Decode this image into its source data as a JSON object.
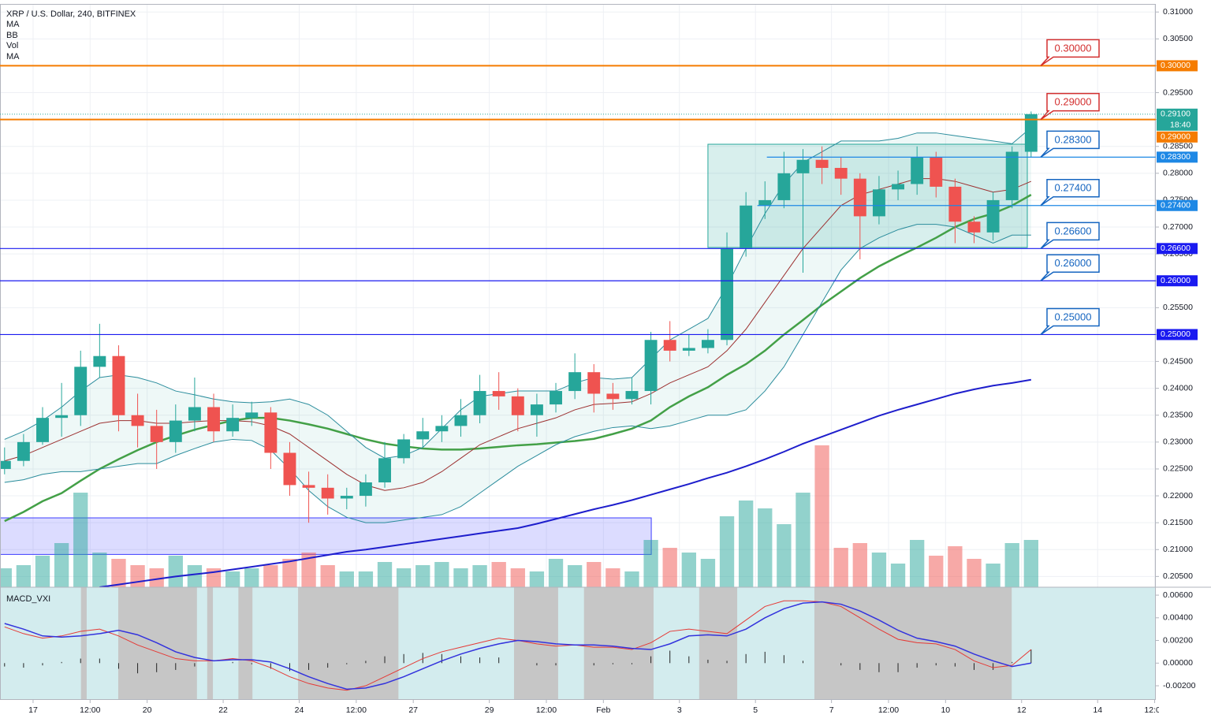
{
  "chart_data": {
    "type": "candlestick",
    "title": "XRP / U.S. Dollar, 240, BITFINEX",
    "indicators": [
      "MA",
      "BB",
      "Vol",
      "MA"
    ],
    "x": [
      16.25,
      16.75,
      17.25,
      17.75,
      18.25,
      18.75,
      19.25,
      19.75,
      20.25,
      20.75,
      21.25,
      21.75,
      22.25,
      22.75,
      23.25,
      23.75,
      24.25,
      24.75,
      25.25,
      25.75,
      26.25,
      26.75,
      27.25,
      27.75,
      28.25,
      28.75,
      29.25,
      29.75,
      30.25,
      30.75,
      31.25,
      31.75,
      32.25,
      32.75,
      33.25,
      33.75,
      34.25,
      34.75,
      35.25,
      35.75,
      36.25,
      36.75,
      37.25,
      37.75,
      38.25,
      38.75,
      39.25,
      39.75,
      40.25,
      40.75,
      41.25,
      41.75,
      42.25,
      42.75,
      43.25
    ],
    "open": [
      0.225,
      0.2265,
      0.23,
      0.2345,
      0.235,
      0.244,
      0.246,
      0.235,
      0.233,
      0.23,
      0.234,
      0.2365,
      0.232,
      0.2345,
      0.2355,
      0.228,
      0.222,
      0.2215,
      0.2195,
      0.22,
      0.2225,
      0.227,
      0.2305,
      0.232,
      0.233,
      0.235,
      0.2395,
      0.2385,
      0.235,
      0.237,
      0.2395,
      0.243,
      0.239,
      0.238,
      0.2395,
      0.249,
      0.247,
      0.2475,
      0.249,
      0.266,
      0.274,
      0.275,
      0.28,
      0.2825,
      0.281,
      0.279,
      0.272,
      0.277,
      0.278,
      0.283,
      0.2775,
      0.271,
      0.269,
      0.275,
      0.284
    ],
    "high": [
      0.229,
      0.2315,
      0.2365,
      0.241,
      0.247,
      0.252,
      0.248,
      0.239,
      0.236,
      0.237,
      0.242,
      0.239,
      0.237,
      0.2375,
      0.2365,
      0.23,
      0.2245,
      0.224,
      0.2215,
      0.224,
      0.23,
      0.2315,
      0.2345,
      0.235,
      0.238,
      0.2425,
      0.243,
      0.24,
      0.239,
      0.241,
      0.2465,
      0.2445,
      0.241,
      0.242,
      0.2505,
      0.2525,
      0.25,
      0.251,
      0.269,
      0.2765,
      0.2785,
      0.284,
      0.2845,
      0.285,
      0.283,
      0.28,
      0.2795,
      0.2805,
      0.285,
      0.284,
      0.279,
      0.272,
      0.2765,
      0.285,
      0.2915
    ],
    "low": [
      0.224,
      0.2255,
      0.2295,
      0.231,
      0.233,
      0.242,
      0.232,
      0.229,
      0.225,
      0.228,
      0.232,
      0.23,
      0.231,
      0.233,
      0.225,
      0.22,
      0.215,
      0.2165,
      0.2175,
      0.218,
      0.2215,
      0.226,
      0.229,
      0.23,
      0.231,
      0.2335,
      0.236,
      0.232,
      0.231,
      0.2355,
      0.238,
      0.2355,
      0.236,
      0.237,
      0.237,
      0.245,
      0.246,
      0.2465,
      0.248,
      0.2645,
      0.2715,
      0.2735,
      0.2615,
      0.278,
      0.276,
      0.264,
      0.2705,
      0.275,
      0.276,
      0.2755,
      0.267,
      0.267,
      0.2675,
      0.2735,
      0.283
    ],
    "close": [
      0.2265,
      0.23,
      0.2345,
      0.235,
      0.244,
      0.246,
      0.235,
      0.233,
      0.23,
      0.234,
      0.2365,
      0.232,
      0.2345,
      0.2355,
      0.228,
      0.222,
      0.2215,
      0.2195,
      0.22,
      0.2225,
      0.227,
      0.2305,
      0.232,
      0.233,
      0.235,
      0.2395,
      0.2385,
      0.235,
      0.237,
      0.2395,
      0.243,
      0.239,
      0.238,
      0.2395,
      0.249,
      0.247,
      0.2475,
      0.249,
      0.266,
      0.274,
      0.275,
      0.28,
      0.2825,
      0.281,
      0.279,
      0.272,
      0.277,
      0.278,
      0.283,
      0.2775,
      0.271,
      0.269,
      0.275,
      0.284,
      0.291
    ],
    "up_color": "#26a69a",
    "down_color": "#ef5350",
    "xlim": [
      16.13,
      46.53
    ],
    "xticks": [
      17,
      {
        "value": 18.5,
        "label": "12:00"
      },
      20,
      22,
      24,
      {
        "value": 25.5,
        "label": "12:00"
      },
      27,
      29,
      {
        "value": 30.5,
        "label": "12:00"
      },
      {
        "value": 32,
        "label": "Feb"
      },
      {
        "value": 34,
        "label": "3"
      },
      {
        "value": 36,
        "label": "5"
      },
      {
        "value": 38,
        "label": "7"
      },
      {
        "value": 39.5,
        "label": "12:00"
      },
      {
        "value": 41,
        "label": "10"
      },
      {
        "value": 43,
        "label": "12"
      },
      {
        "value": 45,
        "label": "14"
      },
      {
        "value": 46.5,
        "label": "12:00"
      }
    ],
    "ylim": [
      0.203,
      0.3115
    ],
    "yticks": [
      {
        "value": 0.31,
        "label": "0.31000"
      },
      {
        "value": 0.305,
        "label": "0.30500"
      },
      {
        "value": 0.3,
        "label": "0.30000"
      },
      {
        "value": 0.295,
        "label": "0.29500"
      },
      {
        "value": 0.29,
        "label": "0.29000"
      },
      {
        "value": 0.285,
        "label": "0.28500"
      },
      {
        "value": 0.28,
        "label": "0.28000"
      },
      {
        "value": 0.275,
        "label": "0.27500"
      },
      {
        "value": 0.27,
        "label": "0.27000"
      },
      {
        "value": 0.265,
        "label": "0.26500"
      },
      {
        "value": 0.26,
        "label": "0.26000"
      },
      {
        "value": 0.255,
        "label": "0.25500"
      },
      {
        "value": 0.25,
        "label": "0.25000"
      },
      {
        "value": 0.245,
        "label": "0.24500"
      },
      {
        "value": 0.24,
        "label": "0.24000"
      },
      {
        "value": 0.235,
        "label": "0.23500"
      },
      {
        "value": 0.23,
        "label": "0.23000"
      },
      {
        "value": 0.225,
        "label": "0.22500"
      },
      {
        "value": 0.22,
        "label": "0.22000"
      },
      {
        "value": 0.215,
        "label": "0.21500"
      },
      {
        "value": 0.21,
        "label": "0.21000"
      },
      {
        "value": 0.205,
        "label": "0.20500"
      }
    ],
    "grid": true,
    "bb_fill": "#26a69a",
    "overlays": [
      {
        "kind": "ma",
        "color": "#43a047",
        "width": 2.5,
        "values": [
          0.2153,
          0.217,
          0.219,
          0.2205,
          0.2228,
          0.225,
          0.2268,
          0.2285,
          0.23,
          0.2312,
          0.2323,
          0.2332,
          0.234,
          0.2345,
          0.2345,
          0.234,
          0.2333,
          0.2325,
          0.2315,
          0.2305,
          0.2297,
          0.2292,
          0.2288,
          0.2286,
          0.2286,
          0.2288,
          0.2291,
          0.2294,
          0.2296,
          0.2299,
          0.2302,
          0.2306,
          0.2315,
          0.2325,
          0.234,
          0.2365,
          0.2385,
          0.2402,
          0.2425,
          0.2445,
          0.247,
          0.25,
          0.2527,
          0.2555,
          0.258,
          0.2605,
          0.2627,
          0.2645,
          0.2662,
          0.268,
          0.27,
          0.2715,
          0.2725,
          0.274,
          0.276
        ]
      },
      {
        "kind": "bb_upper",
        "color": "#2a8c9c",
        "width": 1,
        "values": [
          0.2305,
          0.232,
          0.234,
          0.2365,
          0.2395,
          0.242,
          0.2425,
          0.242,
          0.241,
          0.2395,
          0.2388,
          0.238,
          0.2375,
          0.2373,
          0.2375,
          0.238,
          0.237,
          0.235,
          0.232,
          0.229,
          0.227,
          0.2275,
          0.229,
          0.2325,
          0.236,
          0.2385,
          0.239,
          0.2395,
          0.2395,
          0.2395,
          0.241,
          0.242,
          0.2417,
          0.242,
          0.2455,
          0.249,
          0.251,
          0.253,
          0.259,
          0.266,
          0.2725,
          0.278,
          0.282,
          0.284,
          0.286,
          0.286,
          0.286,
          0.2865,
          0.2875,
          0.2875,
          0.287,
          0.2865,
          0.286,
          0.2855,
          0.2885
        ]
      },
      {
        "kind": "bb_lower",
        "color": "#2a8c9c",
        "width": 1,
        "values": [
          0.2225,
          0.223,
          0.224,
          0.2245,
          0.2245,
          0.225,
          0.2255,
          0.226,
          0.226,
          0.2275,
          0.2288,
          0.23,
          0.2305,
          0.2303,
          0.2285,
          0.225,
          0.221,
          0.218,
          0.216,
          0.215,
          0.215,
          0.2155,
          0.216,
          0.2165,
          0.218,
          0.2205,
          0.223,
          0.2255,
          0.2275,
          0.2295,
          0.231,
          0.232,
          0.2327,
          0.233,
          0.2325,
          0.233,
          0.234,
          0.235,
          0.235,
          0.236,
          0.2395,
          0.244,
          0.25,
          0.256,
          0.262,
          0.266,
          0.268,
          0.2695,
          0.2705,
          0.2705,
          0.27,
          0.2685,
          0.267,
          0.2685,
          0.2685
        ]
      },
      {
        "kind": "bb_basis",
        "color": "#9c3030",
        "width": 1,
        "values": [
          0.2265,
          0.2275,
          0.229,
          0.2305,
          0.232,
          0.2335,
          0.234,
          0.234,
          0.2335,
          0.2335,
          0.2338,
          0.234,
          0.234,
          0.2338,
          0.233,
          0.2315,
          0.229,
          0.2265,
          0.224,
          0.222,
          0.221,
          0.2215,
          0.2225,
          0.2245,
          0.227,
          0.2295,
          0.231,
          0.2325,
          0.2335,
          0.2345,
          0.236,
          0.237,
          0.2372,
          0.2375,
          0.239,
          0.241,
          0.2425,
          0.244,
          0.247,
          0.251,
          0.256,
          0.261,
          0.266,
          0.27,
          0.274,
          0.276,
          0.277,
          0.278,
          0.279,
          0.279,
          0.2785,
          0.2775,
          0.2765,
          0.277,
          0.2785
        ]
      },
      {
        "kind": "ma",
        "color": "#1e1ecc",
        "width": 2,
        "values": [
          null,
          null,
          null,
          null,
          null,
          0.203,
          0.2035,
          0.204,
          0.2045,
          0.205,
          0.2054,
          0.2058,
          0.2063,
          0.2068,
          0.2073,
          0.2078,
          0.2084,
          0.209,
          0.2096,
          0.21,
          0.2105,
          0.211,
          0.2115,
          0.212,
          0.2125,
          0.213,
          0.2135,
          0.214,
          0.2148,
          0.2157,
          0.2166,
          0.2175,
          0.2183,
          0.2192,
          0.2202,
          0.2212,
          0.2222,
          0.2233,
          0.2243,
          0.2255,
          0.2268,
          0.2282,
          0.2297,
          0.231,
          0.2323,
          0.2336,
          0.2349,
          0.236,
          0.237,
          0.238,
          0.239,
          0.2398,
          0.2405,
          0.241,
          0.2416
        ]
      }
    ],
    "volume": {
      "vlim": [
        0,
        100
      ],
      "values": [
        12,
        14,
        20,
        28,
        60,
        22,
        18,
        14,
        12,
        20,
        14,
        12,
        10,
        12,
        14,
        18,
        22,
        14,
        10,
        10,
        16,
        12,
        14,
        16,
        12,
        14,
        16,
        12,
        10,
        18,
        14,
        16,
        12,
        10,
        30,
        25,
        22,
        18,
        45,
        55,
        50,
        40,
        60,
        90,
        25,
        28,
        22,
        15,
        30,
        20,
        26,
        18,
        15,
        28,
        30
      ]
    },
    "boxes": [
      {
        "x": [
          34.75,
          43.15
        ],
        "y": [
          0.2662,
          0.2854
        ],
        "color": "#26a69a"
      },
      {
        "x": [
          16.13,
          33.26
        ],
        "y": [
          0.2091,
          0.2159
        ],
        "color": "#3f3fff"
      }
    ],
    "levels": [
      {
        "value": 0.3,
        "label": "0.30000",
        "color": "#f57c00",
        "callout": "#d32f2f"
      },
      {
        "value": 0.29,
        "label": "0.29000",
        "color": "#f57c00",
        "callout": "#d32f2f"
      },
      {
        "value": 0.283,
        "label": "0.28300",
        "color": "#1e88e5",
        "callout": "#1565c0",
        "from": 36.3
      },
      {
        "value": 0.274,
        "label": "0.27400",
        "color": "#1e88e5",
        "callout": "#1565c0",
        "from": 36.05
      },
      {
        "value": 0.266,
        "label": "0.26600",
        "color": "#1a1af0",
        "callout": "#1565c0"
      },
      {
        "value": 0.26,
        "label": "0.26000",
        "color": "#1a1af0",
        "callout": "#1565c0"
      },
      {
        "value": 0.25,
        "label": "0.25000",
        "color": "#1a1af0",
        "callout": "#1565c0"
      }
    ],
    "last": {
      "value": 0.291,
      "label": "0.29100",
      "countdown": "18:40",
      "color": "#26a69a"
    },
    "macd": {
      "title": "MACD_VXI",
      "ylim": [
        -0.00325,
        0.0067
      ],
      "yticks": [
        {
          "value": 0.006,
          "label": "0.00600"
        },
        {
          "value": 0.004,
          "label": "0.00400"
        },
        {
          "value": 0.002,
          "label": "0.00200"
        },
        {
          "value": 0,
          "label": "0.00000"
        },
        {
          "value": -0.002,
          "label": "-0.00200"
        }
      ],
      "background": "#d3ecee",
      "zone_color": "#c6c6c6",
      "zones": [
        [
          18.26,
          18.41
        ],
        [
          19.24,
          21.31
        ],
        [
          21.58,
          21.73
        ],
        [
          22.4,
          22.77
        ],
        [
          23.97,
          26.61
        ],
        [
          29.65,
          30.81
        ],
        [
          31.49,
          33.32
        ],
        [
          34.52,
          35.52
        ],
        [
          37.55,
          42.74
        ]
      ],
      "macd_color": "#3333dd",
      "signal_color": "#e53935",
      "macd": [
        0.0035,
        0.003,
        0.0024,
        0.0023,
        0.0024,
        0.0026,
        0.0029,
        0.0025,
        0.0018,
        0.001,
        0.0005,
        0.0002,
        0.0003,
        0.0003,
        0.0001,
        -0.0005,
        -0.0012,
        -0.0018,
        -0.0023,
        -0.0022,
        -0.0018,
        -0.0012,
        -0.0005,
        0.0002,
        0.0008,
        0.0013,
        0.0017,
        0.002,
        0.0019,
        0.0017,
        0.0016,
        0.0016,
        0.0015,
        0.0013,
        0.0012,
        0.0017,
        0.0024,
        0.0025,
        0.0024,
        0.003,
        0.004,
        0.0048,
        0.0053,
        0.0054,
        0.0052,
        0.0046,
        0.0038,
        0.0029,
        0.0022,
        0.0019,
        0.0015,
        0.0008,
        0.0002,
        -0.0003,
        0.0
      ],
      "signal": [
        0.0032,
        0.0026,
        0.0022,
        0.0024,
        0.0028,
        0.003,
        0.0024,
        0.0016,
        0.001,
        0.0004,
        0.0002,
        0.0002,
        0.0004,
        0.0002,
        -0.0004,
        -0.0012,
        -0.0018,
        -0.0022,
        -0.0024,
        -0.002,
        -0.0012,
        -0.0004,
        0.0004,
        0.001,
        0.0014,
        0.0018,
        0.0022,
        0.002,
        0.0017,
        0.0015,
        0.0016,
        0.0014,
        0.0014,
        0.0012,
        0.0018,
        0.0028,
        0.003,
        0.0028,
        0.0026,
        0.0038,
        0.005,
        0.0055,
        0.0055,
        0.0054,
        0.005,
        0.004,
        0.003,
        0.0021,
        0.0018,
        0.0017,
        0.0012,
        0.0002,
        -0.0004,
        -0.0002,
        0.0012
      ],
      "histogram": [
        -0.0003,
        -0.0004,
        -0.0002,
        0.0001,
        0.0004,
        0.0004,
        -0.0005,
        -0.0009,
        -0.0008,
        -0.0006,
        -0.0003,
        0.0,
        0.0001,
        -0.0001,
        -0.0005,
        -0.0007,
        -0.0006,
        -0.0004,
        -0.0001,
        0.0002,
        0.0006,
        0.0008,
        0.0009,
        0.0008,
        0.0006,
        0.0005,
        0.0005,
        0.0,
        -0.0002,
        -0.0002,
        0.0,
        -0.0002,
        -0.0001,
        -0.0001,
        0.0006,
        0.0011,
        0.0006,
        0.0003,
        0.0002,
        0.0008,
        0.001,
        0.0007,
        0.0002,
        0.0,
        -0.0002,
        -0.0006,
        -0.0008,
        -0.0008,
        -0.0004,
        -0.0002,
        -0.0003,
        -0.0006,
        -0.0006,
        0.0001,
        0.0012
      ]
    }
  }
}
